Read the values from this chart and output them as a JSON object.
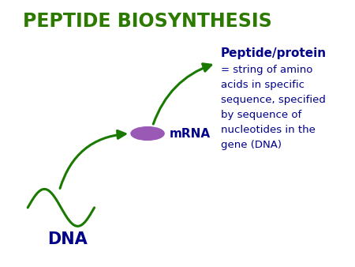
{
  "title": "PEPTIDE BIOSYNTHESIS",
  "title_color": "#2d7a00",
  "title_fontsize": 17,
  "title_fontweight": "bold",
  "background_color": "#ffffff",
  "dna_label": "DNA",
  "dna_label_color": "#00008B",
  "dna_label_fontsize": 15,
  "dna_label_fontweight": "bold",
  "mrna_label": "mRNA",
  "mrna_label_color": "#00008B",
  "mrna_label_fontsize": 11,
  "mrna_label_fontweight": "bold",
  "peptide_label": "Peptide/protein",
  "peptide_label_color": "#00008B",
  "peptide_label_fontsize": 11,
  "peptide_label_fontweight": "bold",
  "description_text": "= string of amino\nacids in specific\nsequence, specified\nby sequence of\nnucleotides in the\ngene (DNA)",
  "description_color": "#00008B",
  "description_fontsize": 9.5,
  "curve_color": "#1a7a00",
  "arrow_color": "#1a7a00",
  "ellipse_color": "#9b59b6",
  "figsize": [
    4.5,
    3.38
  ],
  "dpi": 100
}
